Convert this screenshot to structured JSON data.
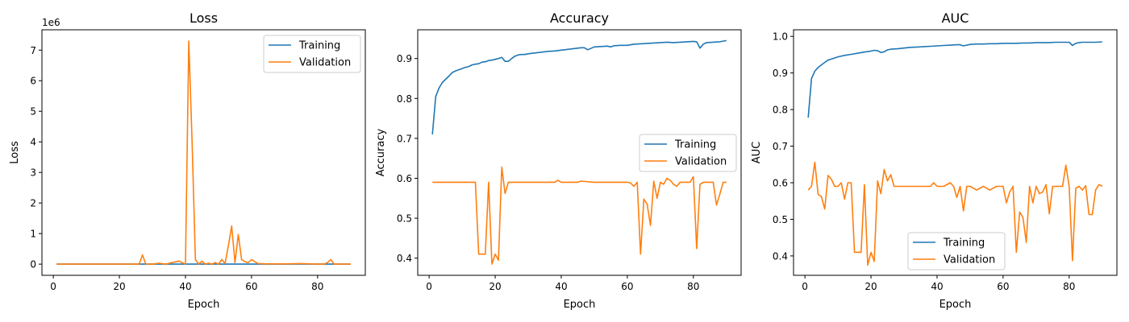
{
  "colors": {
    "training": "#1f77b4",
    "validation": "#ff7f0e"
  },
  "chart_data": [
    {
      "type": "line",
      "title": "Loss",
      "xlabel": "Epoch",
      "ylabel": "Loss",
      "offset_text": "1e6",
      "xlim": [
        -3.45,
        94.45
      ],
      "ylim": [
        -0.365,
        7.665
      ],
      "xticks": [
        0,
        20,
        40,
        60,
        80
      ],
      "yticks": [
        0,
        1,
        2,
        3,
        4,
        5,
        6,
        7
      ],
      "xtick_labels": [
        "0",
        "20",
        "40",
        "60",
        "80"
      ],
      "ytick_labels": [
        "0",
        "1",
        "2",
        "3",
        "4",
        "5",
        "6",
        "7"
      ],
      "legend": "top-right",
      "series": [
        {
          "name": "Training",
          "color": "#1f77b4",
          "x": [
            1,
            10,
            20,
            30,
            40,
            50,
            60,
            70,
            80,
            90
          ],
          "y": [
            0,
            0,
            0,
            0,
            0,
            0,
            0,
            0,
            0,
            0
          ]
        },
        {
          "name": "Validation",
          "color": "#ff7f0e",
          "x": [
            1,
            5,
            10,
            15,
            20,
            25,
            26,
            27,
            28,
            30,
            32,
            34,
            36,
            38,
            40,
            41,
            42,
            43,
            44,
            45,
            46,
            47,
            48,
            49,
            50,
            51,
            52,
            53,
            54,
            55,
            56,
            57,
            58,
            59,
            60,
            61,
            62,
            65,
            70,
            75,
            78,
            80,
            82,
            83,
            84,
            85,
            88,
            90
          ],
          "y": [
            0,
            0,
            0,
            0,
            0,
            0,
            0,
            0.3,
            0,
            0,
            0.03,
            0,
            0.05,
            0.1,
            0,
            7.3,
            4.0,
            0.15,
            0,
            0.1,
            0,
            0.03,
            0,
            0.05,
            0,
            0.15,
            0.02,
            0.6,
            1.25,
            0.05,
            0.97,
            0.15,
            0.08,
            0.05,
            0.15,
            0.08,
            0.02,
            0.01,
            0.01,
            0.02,
            0.01,
            0,
            0,
            0.05,
            0.15,
            0,
            0,
            0
          ]
        }
      ]
    },
    {
      "type": "line",
      "title": "Accuracy",
      "xlabel": "Epoch",
      "ylabel": "Accuracy",
      "xlim": [
        -3.45,
        94.45
      ],
      "ylim": [
        0.357,
        0.972
      ],
      "xticks": [
        0,
        20,
        40,
        60,
        80
      ],
      "yticks": [
        0.4,
        0.5,
        0.6,
        0.7,
        0.8,
        0.9
      ],
      "xtick_labels": [
        "0",
        "20",
        "40",
        "60",
        "80"
      ],
      "ytick_labels": [
        "0.4",
        "0.5",
        "0.6",
        "0.7",
        "0.8",
        "0.9"
      ],
      "legend": "center-right",
      "series": [
        {
          "name": "Training",
          "color": "#1f77b4",
          "x": [
            1,
            2,
            3,
            4,
            5,
            6,
            7,
            8,
            9,
            10,
            11,
            12,
            13,
            14,
            15,
            16,
            17,
            18,
            19,
            20,
            21,
            22,
            23,
            24,
            25,
            26,
            27,
            28,
            29,
            30,
            32,
            34,
            36,
            38,
            40,
            42,
            44,
            46,
            47,
            48,
            50,
            52,
            54,
            55,
            56,
            58,
            60,
            62,
            64,
            66,
            68,
            70,
            72,
            74,
            76,
            78,
            80,
            81,
            82,
            83,
            84,
            86,
            88,
            90
          ],
          "y": [
            0.71,
            0.805,
            0.826,
            0.84,
            0.848,
            0.856,
            0.865,
            0.869,
            0.872,
            0.875,
            0.878,
            0.88,
            0.884,
            0.886,
            0.887,
            0.891,
            0.892,
            0.895,
            0.896,
            0.898,
            0.9,
            0.903,
            0.893,
            0.893,
            0.9,
            0.906,
            0.909,
            0.91,
            0.91,
            0.912,
            0.914,
            0.916,
            0.918,
            0.919,
            0.921,
            0.923,
            0.925,
            0.927,
            0.927,
            0.922,
            0.929,
            0.93,
            0.931,
            0.929,
            0.932,
            0.933,
            0.933,
            0.936,
            0.937,
            0.938,
            0.939,
            0.94,
            0.941,
            0.94,
            0.941,
            0.942,
            0.943,
            0.942,
            0.926,
            0.936,
            0.94,
            0.941,
            0.942,
            0.945
          ]
        },
        {
          "name": "Validation",
          "color": "#ff7f0e",
          "x": [
            1,
            5,
            10,
            14,
            15,
            16,
            17,
            18,
            19,
            20,
            21,
            22,
            23,
            24,
            25,
            30,
            35,
            38,
            39,
            40,
            45,
            46,
            50,
            55,
            60,
            61,
            62,
            63,
            64,
            65,
            66,
            67,
            68,
            69,
            70,
            71,
            72,
            73,
            74,
            75,
            76,
            77,
            78,
            79,
            80,
            81,
            82,
            83,
            84,
            85,
            86,
            87,
            88,
            89,
            90
          ],
          "y": [
            0.59,
            0.59,
            0.59,
            0.59,
            0.41,
            0.41,
            0.41,
            0.59,
            0.385,
            0.41,
            0.395,
            0.628,
            0.562,
            0.59,
            0.59,
            0.59,
            0.59,
            0.59,
            0.595,
            0.59,
            0.59,
            0.593,
            0.59,
            0.59,
            0.59,
            0.588,
            0.58,
            0.59,
            0.41,
            0.548,
            0.535,
            0.482,
            0.593,
            0.55,
            0.59,
            0.585,
            0.6,
            0.595,
            0.585,
            0.58,
            0.59,
            0.59,
            0.59,
            0.59,
            0.604,
            0.424,
            0.585,
            0.59,
            0.59,
            0.59,
            0.59,
            0.533,
            0.56,
            0.59,
            0.59
          ]
        }
      ]
    },
    {
      "type": "line",
      "title": "AUC",
      "xlabel": "Epoch",
      "ylabel": "AUC",
      "xlim": [
        -3.45,
        94.45
      ],
      "ylim": [
        0.347,
        1.018
      ],
      "xticks": [
        0,
        20,
        40,
        60,
        80
      ],
      "yticks": [
        0.4,
        0.5,
        0.6,
        0.7,
        0.8,
        0.9,
        1.0
      ],
      "xtick_labels": [
        "0",
        "20",
        "40",
        "60",
        "80"
      ],
      "ytick_labels": [
        "0.4",
        "0.5",
        "0.6",
        "0.7",
        "0.8",
        "0.9",
        "1.0"
      ],
      "legend": "lower-center",
      "series": [
        {
          "name": "Training",
          "color": "#1f77b4",
          "x": [
            1,
            2,
            3,
            4,
            5,
            6,
            7,
            8,
            9,
            10,
            12,
            14,
            16,
            18,
            20,
            21,
            22,
            23,
            24,
            25,
            26,
            28,
            30,
            32,
            34,
            36,
            38,
            40,
            42,
            44,
            46,
            47,
            48,
            50,
            52,
            54,
            56,
            58,
            60,
            62,
            64,
            66,
            68,
            70,
            72,
            74,
            76,
            78,
            80,
            81,
            82,
            83,
            84,
            86,
            88,
            90
          ],
          "y": [
            0.778,
            0.885,
            0.905,
            0.915,
            0.922,
            0.929,
            0.935,
            0.938,
            0.941,
            0.944,
            0.948,
            0.951,
            0.954,
            0.957,
            0.96,
            0.962,
            0.961,
            0.956,
            0.958,
            0.963,
            0.965,
            0.966,
            0.968,
            0.97,
            0.971,
            0.972,
            0.973,
            0.974,
            0.975,
            0.976,
            0.977,
            0.977,
            0.974,
            0.978,
            0.979,
            0.979,
            0.98,
            0.98,
            0.981,
            0.981,
            0.981,
            0.982,
            0.982,
            0.983,
            0.983,
            0.983,
            0.984,
            0.984,
            0.984,
            0.975,
            0.981,
            0.983,
            0.984,
            0.984,
            0.984,
            0.985
          ]
        },
        {
          "name": "Validation",
          "color": "#ff7f0e",
          "x": [
            1,
            2,
            3,
            4,
            5,
            6,
            7,
            8,
            9,
            10,
            11,
            12,
            13,
            14,
            15,
            16,
            17,
            18,
            19,
            20,
            21,
            22,
            23,
            24,
            25,
            26,
            27,
            30,
            35,
            38,
            39,
            40,
            42,
            44,
            45,
            46,
            47,
            48,
            49,
            50,
            52,
            54,
            56,
            58,
            60,
            61,
            62,
            63,
            64,
            65,
            66,
            67,
            68,
            69,
            70,
            71,
            72,
            73,
            74,
            75,
            76,
            77,
            78,
            79,
            80,
            81,
            82,
            83,
            84,
            85,
            86,
            87,
            88,
            89,
            90
          ],
          "y": [
            0.58,
            0.59,
            0.656,
            0.568,
            0.562,
            0.528,
            0.62,
            0.61,
            0.59,
            0.59,
            0.6,
            0.555,
            0.6,
            0.6,
            0.41,
            0.41,
            0.41,
            0.595,
            0.375,
            0.41,
            0.385,
            0.605,
            0.57,
            0.636,
            0.605,
            0.622,
            0.59,
            0.59,
            0.59,
            0.59,
            0.6,
            0.59,
            0.59,
            0.6,
            0.59,
            0.56,
            0.59,
            0.523,
            0.59,
            0.59,
            0.58,
            0.59,
            0.58,
            0.59,
            0.59,
            0.545,
            0.575,
            0.59,
            0.41,
            0.52,
            0.505,
            0.437,
            0.59,
            0.545,
            0.59,
            0.57,
            0.575,
            0.595,
            0.515,
            0.59,
            0.59,
            0.59,
            0.59,
            0.648,
            0.59,
            0.387,
            0.585,
            0.59,
            0.58,
            0.592,
            0.513,
            0.513,
            0.58,
            0.595,
            0.59
          ]
        }
      ]
    }
  ]
}
